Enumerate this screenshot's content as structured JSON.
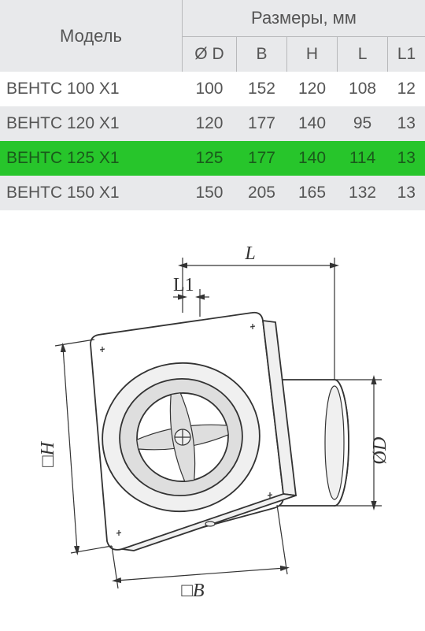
{
  "table": {
    "header_model": "Модель",
    "header_dims": "Размеры, мм",
    "cols": {
      "d": "Ø D",
      "b": "B",
      "h": "H",
      "l": "L",
      "l1": "L1"
    },
    "rows": [
      {
        "model": "ВЕНТС 100 Х1",
        "d": "100",
        "b": "152",
        "h": "120",
        "l": "108",
        "l1": "12",
        "row_class": "row-odd"
      },
      {
        "model": "ВЕНТС 120 Х1",
        "d": "120",
        "b": "177",
        "h": "140",
        "l": "95",
        "l1": "13",
        "row_class": "row-even"
      },
      {
        "model": "ВЕНТС 125 Х1",
        "d": "125",
        "b": "177",
        "h": "140",
        "l": "114",
        "l1": "13",
        "row_class": "row-hl"
      },
      {
        "model": "ВЕНТС 150 Х1",
        "d": "150",
        "b": "205",
        "h": "165",
        "l": "132",
        "l1": "13",
        "row_class": "row-even"
      }
    ],
    "colors": {
      "header_bg": "#e8e9eb",
      "border": "#b8b9bb",
      "text": "#555555",
      "highlight_bg": "#27c52b",
      "highlight_text": "#1a5a1b"
    }
  },
  "diagram": {
    "labels": {
      "L": "L",
      "L1": "L1",
      "H": "H",
      "B": "B",
      "D": "D",
      "sq": "□",
      "dia": "Ø"
    },
    "colors": {
      "stroke": "#333333",
      "fill_light": "#f0f0f0",
      "fill_white": "#ffffff"
    }
  }
}
